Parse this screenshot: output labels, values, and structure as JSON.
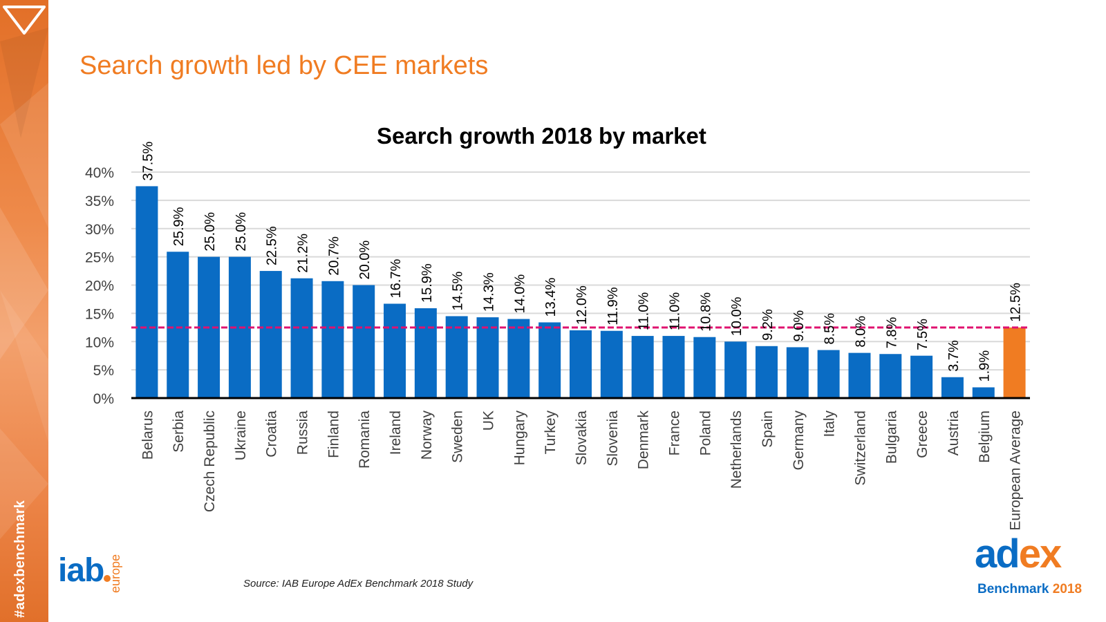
{
  "slide": {
    "title": "Search growth led by CEE markets",
    "hashtag": "#adexbenchmark",
    "source": "Source: IAB Europe AdEx Benchmark 2018 Study"
  },
  "logos": {
    "iab_text": "iab",
    "iab_europe": "europe",
    "adex_ad": "ad",
    "adex_ex": "ex",
    "adex_benchmark": "Benchmark",
    "adex_year": "2018"
  },
  "colors": {
    "bar": "#0a6cc4",
    "average_bar": "#f07c22",
    "average_line": "#e0126f",
    "title_orange": "#f07c22",
    "grid": "#d9d9d9"
  },
  "chart_data": {
    "type": "bar",
    "title": "Search growth 2018 by market",
    "xlabel": "",
    "ylabel": "",
    "ylim": [
      0,
      40
    ],
    "yticks": [
      "0%",
      "5%",
      "10%",
      "15%",
      "20%",
      "25%",
      "30%",
      "35%",
      "40%"
    ],
    "grid": true,
    "categories": [
      "Belarus",
      "Serbia",
      "Czech Republic",
      "Ukraine",
      "Croatia",
      "Russia",
      "Finland",
      "Romania",
      "Ireland",
      "Norway",
      "Sweden",
      "UK",
      "Hungary",
      "Turkey",
      "Slovakia",
      "Slovenia",
      "Denmark",
      "France",
      "Poland",
      "Netherlands",
      "Spain",
      "Germany",
      "Italy",
      "Switzerland",
      "Bulgaria",
      "Greece",
      "Austria",
      "Belgium",
      "European Average"
    ],
    "values": [
      37.5,
      25.9,
      25.0,
      25.0,
      22.5,
      21.2,
      20.7,
      20.0,
      16.7,
      15.9,
      14.5,
      14.3,
      14.0,
      13.4,
      12.0,
      11.9,
      11.0,
      11.0,
      10.8,
      10.0,
      9.2,
      9.0,
      8.5,
      8.0,
      7.8,
      7.5,
      3.7,
      1.9,
      12.5
    ],
    "data_labels": [
      "37.5%",
      "25.9%",
      "25.0%",
      "25.0%",
      "22.5%",
      "21.2%",
      "20.7%",
      "20.0%",
      "16.7%",
      "15.9%",
      "14.5%",
      "14.3%",
      "14.0%",
      "13.4%",
      "12.0%",
      "11.9%",
      "11.0%",
      "11.0%",
      "10.8%",
      "10.0%",
      "9.2%",
      "9.0%",
      "8.5%",
      "8.0%",
      "7.8%",
      "7.5%",
      "3.7%",
      "1.9%",
      "12.5%"
    ],
    "highlight_category": "European Average",
    "reference_line": 12.5
  }
}
